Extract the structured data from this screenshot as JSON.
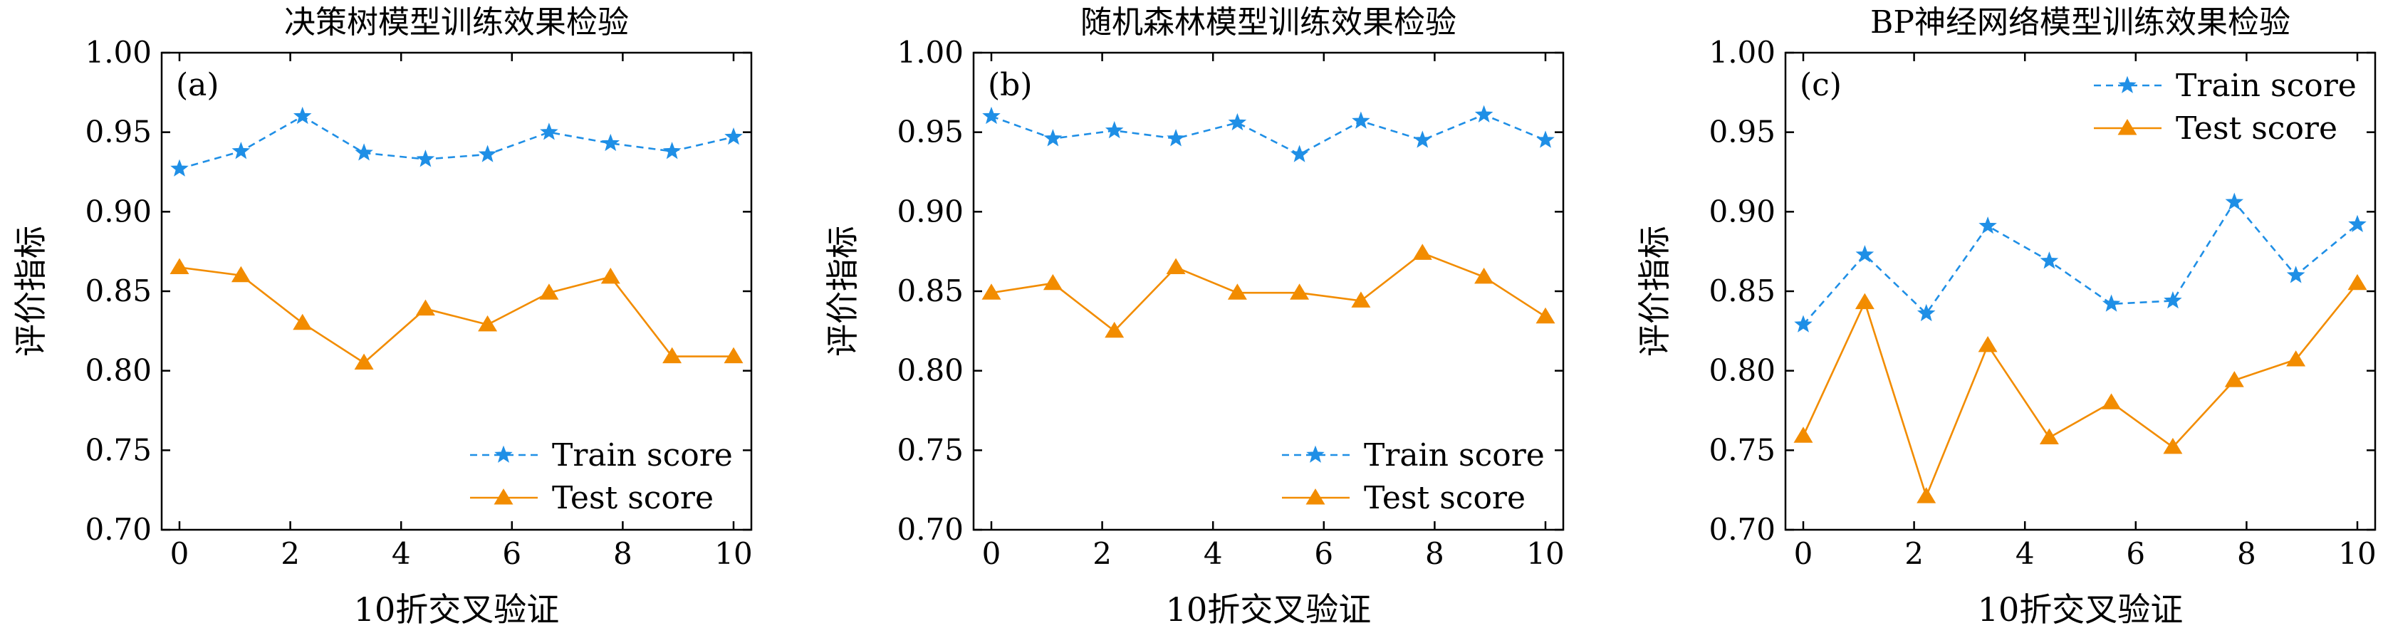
{
  "colors": {
    "train": "#1f8fe6",
    "test": "#f28c00",
    "axis": "#000000"
  },
  "chart_data": [
    {
      "type": "line",
      "panel_label": "(a)",
      "title": "决策树模型训练效果检验",
      "xlabel": "10折交叉验证",
      "ylabel": "评价指标",
      "xlim": [
        0,
        10
      ],
      "ylim": [
        0.7,
        1.0
      ],
      "xticks": [
        "0",
        "2",
        "4",
        "6",
        "8",
        "10"
      ],
      "yticks": [
        "0.70",
        "0.75",
        "0.80",
        "0.85",
        "0.90",
        "0.95",
        "1.00"
      ],
      "legend_position": "lower-right",
      "x": [
        0,
        1.11,
        2.22,
        3.33,
        4.44,
        5.56,
        6.67,
        7.78,
        8.89,
        10
      ],
      "series": [
        {
          "name": "Train score",
          "style": "dashed-star",
          "values": [
            0.927,
            0.938,
            0.96,
            0.937,
            0.933,
            0.936,
            0.95,
            0.943,
            0.938,
            0.947
          ]
        },
        {
          "name": "Test score",
          "style": "solid-triangle",
          "values": [
            0.865,
            0.86,
            0.83,
            0.805,
            0.839,
            0.829,
            0.849,
            0.859,
            0.809,
            0.809
          ]
        }
      ]
    },
    {
      "type": "line",
      "panel_label": "(b)",
      "title": "随机森林模型训练效果检验",
      "xlabel": "10折交叉验证",
      "ylabel": "评价指标",
      "xlim": [
        0,
        10
      ],
      "ylim": [
        0.7,
        1.0
      ],
      "xticks": [
        "0",
        "2",
        "4",
        "6",
        "8",
        "10"
      ],
      "yticks": [
        "0.70",
        "0.75",
        "0.80",
        "0.85",
        "0.90",
        "0.95",
        "1.00"
      ],
      "legend_position": "lower-right",
      "x": [
        0,
        1.11,
        2.22,
        3.33,
        4.44,
        5.56,
        6.67,
        7.78,
        8.89,
        10
      ],
      "series": [
        {
          "name": "Train score",
          "style": "dashed-star",
          "values": [
            0.96,
            0.946,
            0.951,
            0.946,
            0.956,
            0.936,
            0.957,
            0.945,
            0.961,
            0.945
          ]
        },
        {
          "name": "Test score",
          "style": "solid-triangle",
          "values": [
            0.849,
            0.855,
            0.825,
            0.865,
            0.849,
            0.849,
            0.844,
            0.874,
            0.859,
            0.834
          ]
        }
      ]
    },
    {
      "type": "line",
      "panel_label": "(c)",
      "title": "BP神经网络模型训练效果检验",
      "xlabel": "10折交叉验证",
      "ylabel": "评价指标",
      "xlim": [
        0,
        10
      ],
      "ylim": [
        0.7,
        1.0
      ],
      "xticks": [
        "0",
        "2",
        "4",
        "6",
        "8",
        "10"
      ],
      "yticks": [
        "0.70",
        "0.75",
        "0.80",
        "0.85",
        "0.90",
        "0.95",
        "1.00"
      ],
      "legend_position": "upper-right",
      "x": [
        0,
        1.11,
        2.22,
        3.33,
        4.44,
        5.56,
        6.67,
        7.78,
        8.89,
        10
      ],
      "series": [
        {
          "name": "Train score",
          "style": "dashed-star",
          "values": [
            0.829,
            0.873,
            0.836,
            0.891,
            0.869,
            0.842,
            0.844,
            0.906,
            0.86,
            0.892
          ]
        },
        {
          "name": "Test score",
          "style": "solid-triangle",
          "values": [
            0.759,
            0.843,
            0.721,
            0.816,
            0.758,
            0.78,
            0.752,
            0.794,
            0.807,
            0.855
          ]
        }
      ]
    }
  ]
}
